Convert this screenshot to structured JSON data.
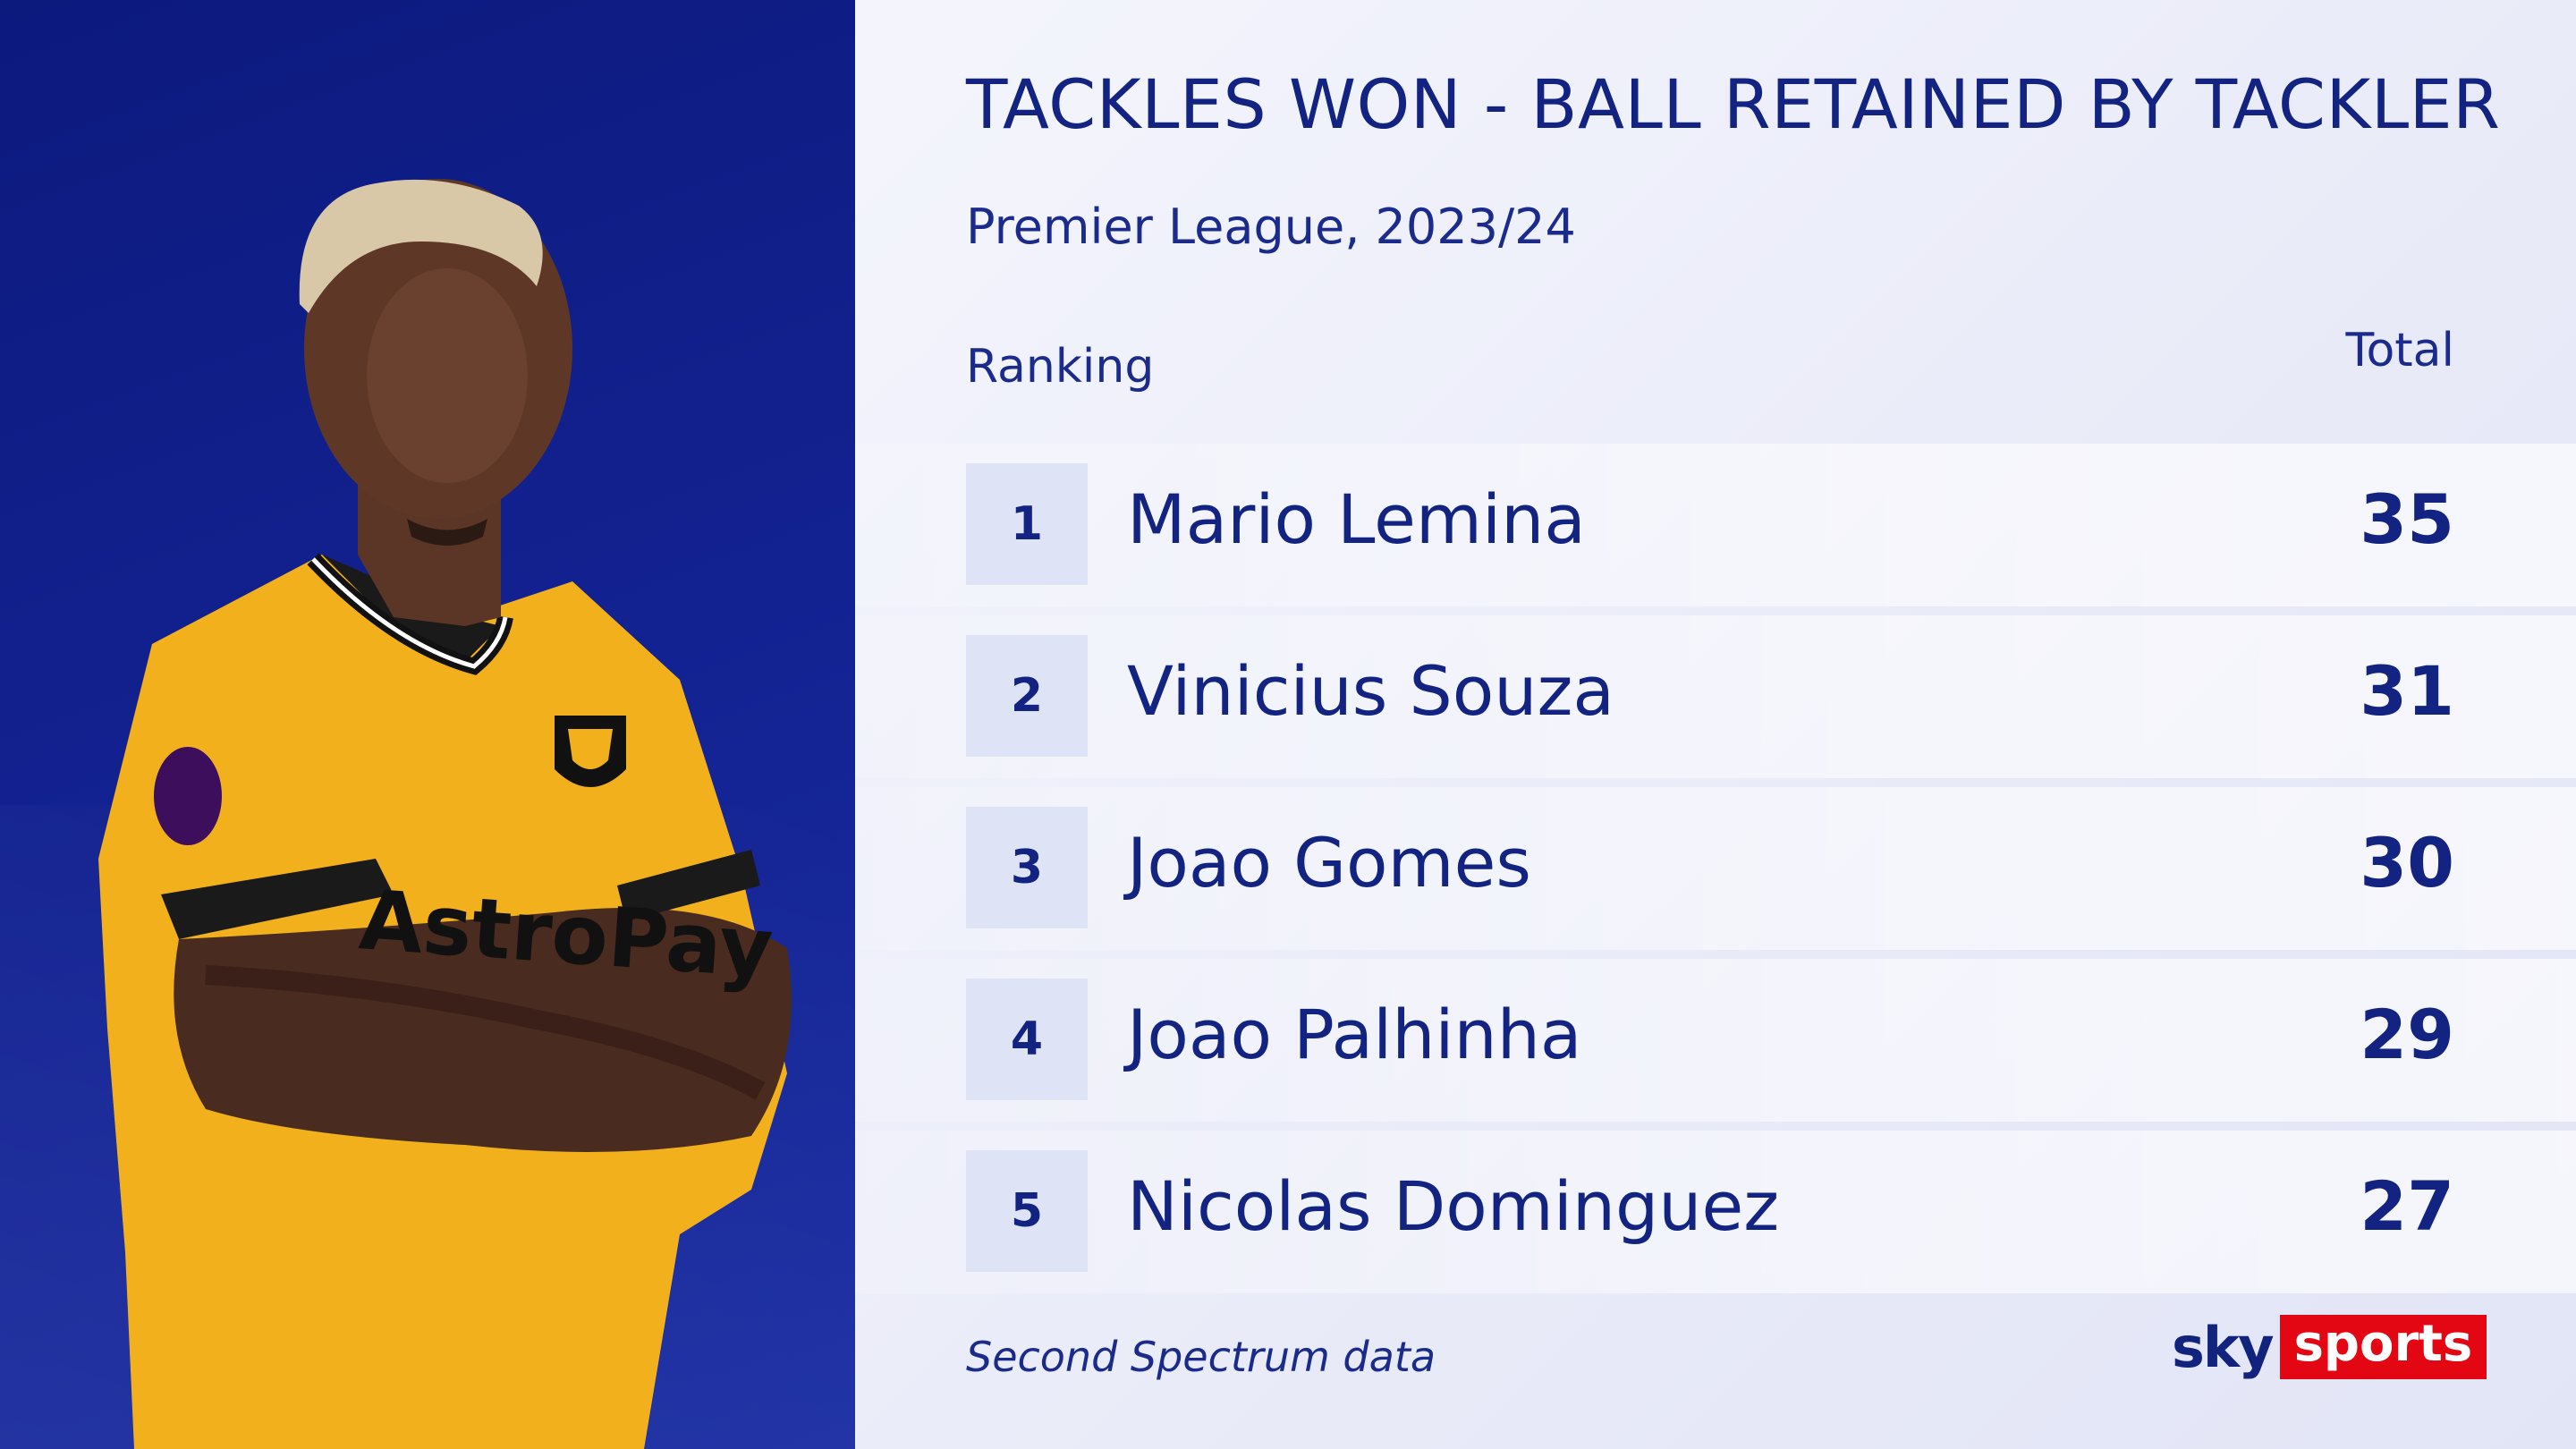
{
  "header": {
    "title": "TACKLES WON - BALL RETAINED BY TACKLER",
    "subtitle": "Premier League, 2023/24"
  },
  "table": {
    "col_rank": "Ranking",
    "col_total": "Total",
    "rows": [
      {
        "rank": "1",
        "name": "Mario Lemina",
        "total": "35"
      },
      {
        "rank": "2",
        "name": "Vinicius Souza",
        "total": "31"
      },
      {
        "rank": "3",
        "name": "Joao Gomes",
        "total": "30"
      },
      {
        "rank": "4",
        "name": "Joao Palhinha",
        "total": "29"
      },
      {
        "rank": "5",
        "name": "Nicolas Dominguez",
        "total": "27"
      }
    ]
  },
  "footer": {
    "source": "Second Spectrum data",
    "logo_sky": "sky",
    "logo_sports": "sports"
  },
  "colors": {
    "navy": "#122382",
    "panel_blue": "#12218f",
    "shirt_gold": "#f2b11c",
    "brand_red": "#e30613"
  },
  "icons": {
    "player": "player-photo",
    "logo": "sky-sports-logo"
  }
}
